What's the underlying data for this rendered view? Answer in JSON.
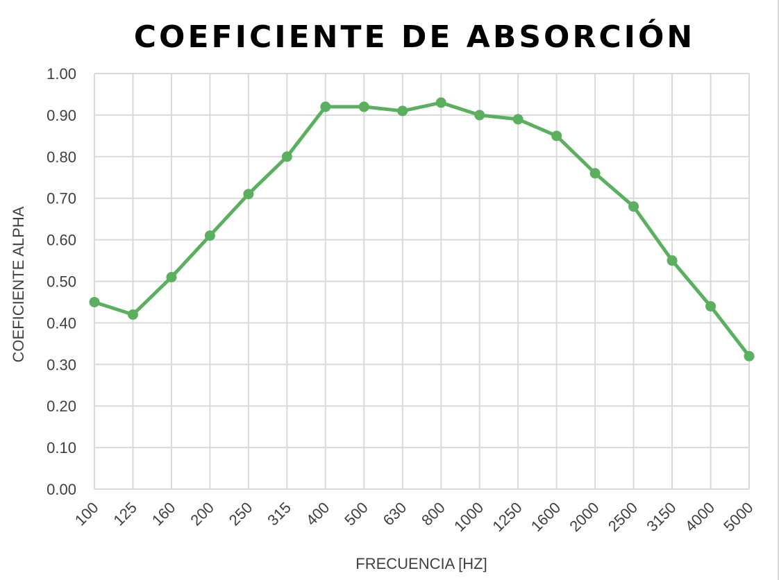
{
  "chart_data": {
    "type": "line",
    "title": "COEFICIENTE DE ABSORCIÓN",
    "xlabel": "FRECUENCIA [HZ]",
    "ylabel": "COEFICIENTE ALPHA",
    "categories": [
      "100",
      "125",
      "160",
      "200",
      "250",
      "315",
      "400",
      "500",
      "630",
      "800",
      "1000",
      "1250",
      "1600",
      "2000",
      "2500",
      "3150",
      "4000",
      "5000"
    ],
    "series": [
      {
        "values": [
          0.45,
          0.42,
          0.51,
          0.61,
          0.71,
          0.8,
          0.92,
          0.92,
          0.91,
          0.93,
          0.9,
          0.89,
          0.85,
          0.76,
          0.68,
          0.55,
          0.44,
          0.32
        ],
        "color": "#5ab05e"
      }
    ],
    "ylim": [
      0,
      1
    ],
    "yticks": [
      "0.00",
      "0.10",
      "0.20",
      "0.30",
      "0.40",
      "0.50",
      "0.60",
      "0.70",
      "0.80",
      "0.90",
      "1.00"
    ],
    "grid": true,
    "legend": "none",
    "gridColor": "#d9d9d9",
    "textColor": "#404040"
  }
}
